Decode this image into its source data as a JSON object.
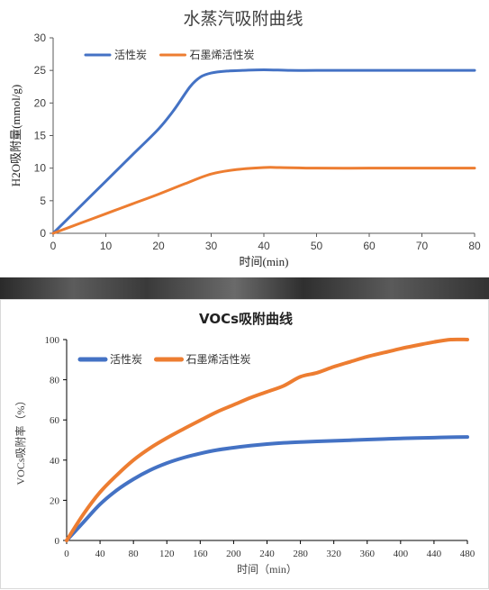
{
  "chart_data": [
    {
      "type": "line",
      "title": "水蒸汽吸附曲线",
      "xlabel": "时间(min)",
      "ylabel": "H2O吸附量(mmol/g)",
      "xlim": [
        0,
        80
      ],
      "ylim": [
        0,
        30
      ],
      "xticks": [
        0,
        10,
        20,
        30,
        40,
        50,
        60,
        70,
        80
      ],
      "yticks": [
        0,
        5,
        10,
        15,
        20,
        25,
        30
      ],
      "grid": false,
      "legend_position": "top-left",
      "series": [
        {
          "name": "活性炭",
          "color": "#4472C4",
          "points": [
            [
              0,
              0
            ],
            [
              5,
              4
            ],
            [
              10,
              8
            ],
            [
              15,
              12
            ],
            [
              20,
              16
            ],
            [
              23,
              19
            ],
            [
              26,
              22.5
            ],
            [
              28,
              24
            ],
            [
              30,
              24.6
            ],
            [
              33,
              24.9
            ],
            [
              36,
              25
            ],
            [
              40,
              25.1
            ],
            [
              45,
              25
            ],
            [
              50,
              25
            ],
            [
              60,
              25
            ],
            [
              70,
              25
            ],
            [
              80,
              25
            ]
          ]
        },
        {
          "name": "石墨烯活性炭",
          "color": "#ED7D31",
          "points": [
            [
              0,
              0
            ],
            [
              5,
              1.5
            ],
            [
              10,
              3
            ],
            [
              15,
              4.5
            ],
            [
              20,
              6
            ],
            [
              25,
              7.6
            ],
            [
              30,
              9.1
            ],
            [
              35,
              9.8
            ],
            [
              40,
              10.1
            ],
            [
              43,
              10.1
            ],
            [
              50,
              10
            ],
            [
              60,
              10
            ],
            [
              70,
              10
            ],
            [
              80,
              10
            ]
          ]
        }
      ]
    },
    {
      "type": "line",
      "title": "VOCs吸附曲线",
      "xlabel": "时间（min）",
      "ylabel": "VOCs吸附率（%）",
      "xlim": [
        0,
        480
      ],
      "ylim": [
        0,
        100
      ],
      "xticks": [
        0,
        40,
        80,
        120,
        160,
        200,
        240,
        280,
        320,
        360,
        400,
        440,
        480
      ],
      "yticks": [
        0,
        20,
        40,
        60,
        80,
        100
      ],
      "grid": false,
      "legend_position": "top-left",
      "series": [
        {
          "name": "活性炭",
          "color": "#4472C4",
          "points": [
            [
              0,
              0
            ],
            [
              20,
              9
            ],
            [
              40,
              18
            ],
            [
              60,
              25
            ],
            [
              80,
              30.5
            ],
            [
              100,
              35
            ],
            [
              120,
              38.5
            ],
            [
              140,
              41.2
            ],
            [
              160,
              43.3
            ],
            [
              180,
              45
            ],
            [
              200,
              46.2
            ],
            [
              220,
              47.2
            ],
            [
              240,
              48
            ],
            [
              260,
              48.6
            ],
            [
              280,
              49
            ],
            [
              300,
              49.3
            ],
            [
              320,
              49.6
            ],
            [
              340,
              49.9
            ],
            [
              360,
              50.2
            ],
            [
              380,
              50.5
            ],
            [
              400,
              50.8
            ],
            [
              420,
              51
            ],
            [
              440,
              51.2
            ],
            [
              460,
              51.4
            ],
            [
              480,
              51.5
            ]
          ]
        },
        {
          "name": "石墨烯活性炭",
          "color": "#ED7D31",
          "points": [
            [
              0,
              0
            ],
            [
              20,
              13
            ],
            [
              40,
              24
            ],
            [
              60,
              32.5
            ],
            [
              80,
              40
            ],
            [
              100,
              46
            ],
            [
              120,
              51
            ],
            [
              140,
              55.5
            ],
            [
              160,
              59.8
            ],
            [
              180,
              64
            ],
            [
              200,
              67.5
            ],
            [
              220,
              71
            ],
            [
              240,
              74
            ],
            [
              260,
              77
            ],
            [
              280,
              81.5
            ],
            [
              300,
              83.5
            ],
            [
              320,
              86.5
            ],
            [
              340,
              89
            ],
            [
              360,
              91.5
            ],
            [
              380,
              93.5
            ],
            [
              400,
              95.5
            ],
            [
              420,
              97.2
            ],
            [
              440,
              98.8
            ],
            [
              460,
              100
            ],
            [
              480,
              100
            ]
          ]
        }
      ]
    }
  ]
}
